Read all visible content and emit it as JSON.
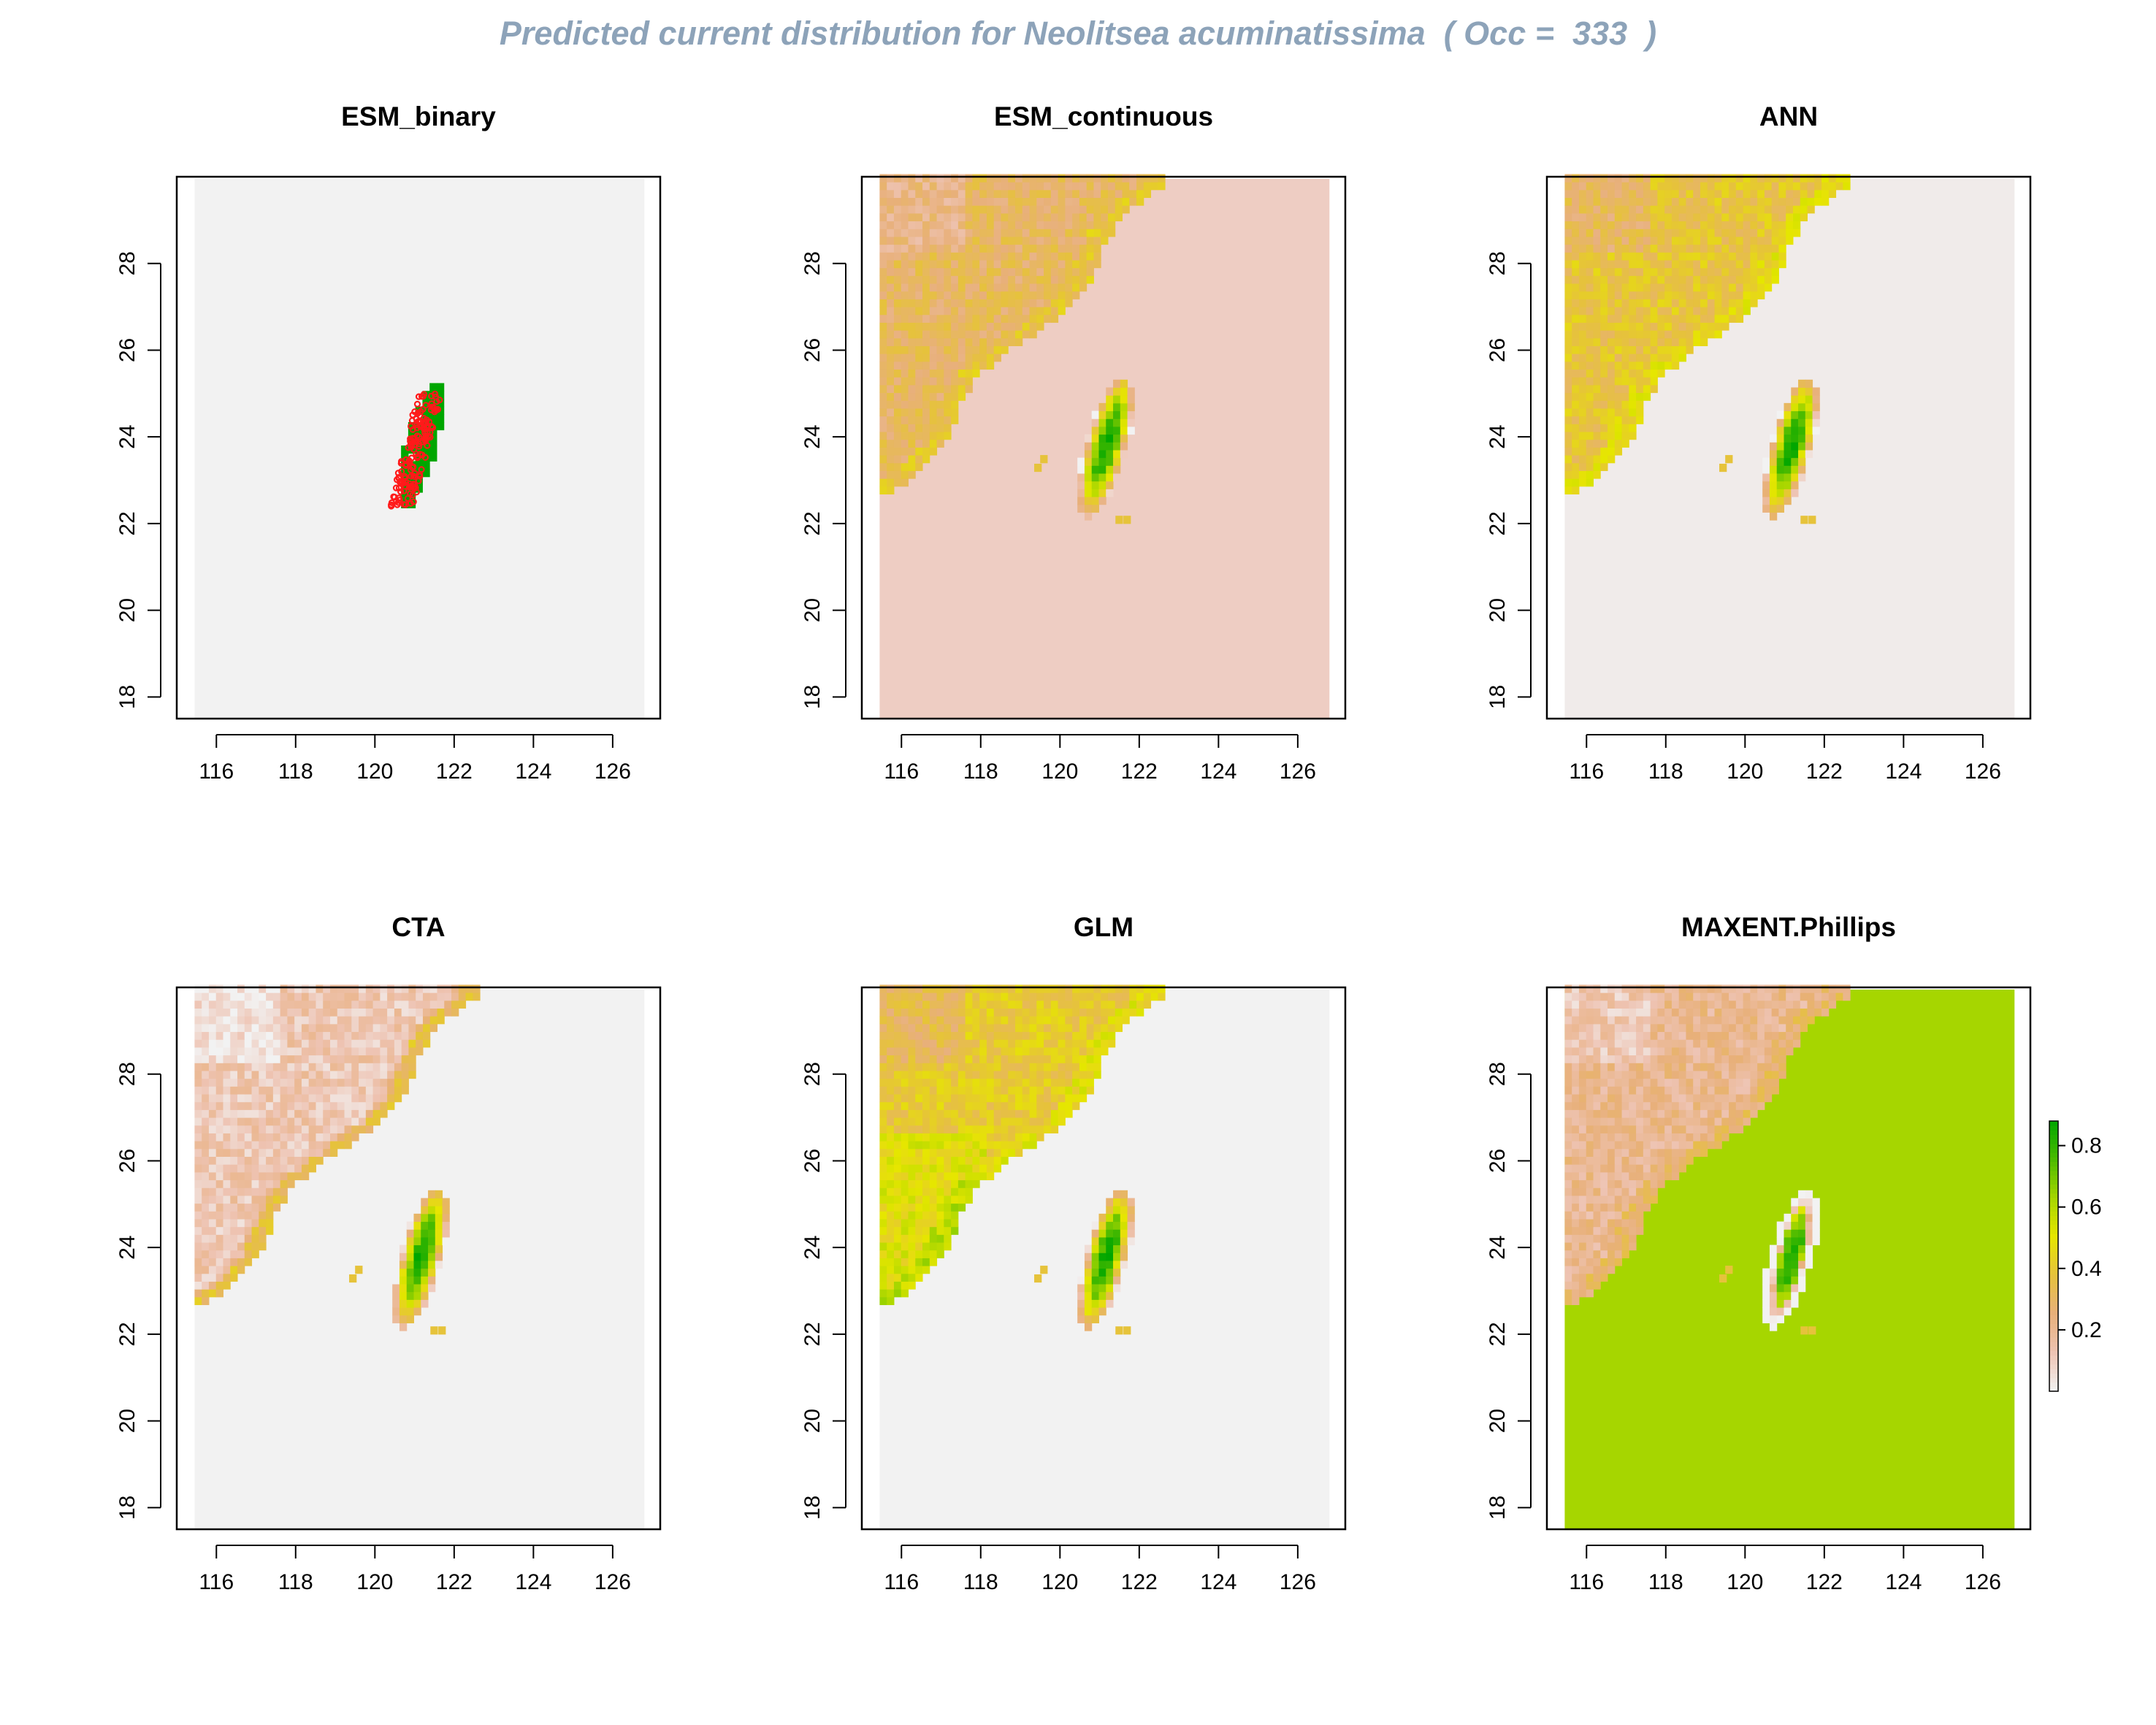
{
  "title": "Predicted current distribution for Neolitsea acuminatissima  ( Occ =  333  )",
  "colors": {
    "title": "#8da3b9",
    "background_cell": "#f2f2f2",
    "occurrence_points": "#ff1a1a",
    "binary_presence": "#00a600",
    "maxent_background": "#a6d600",
    "continuous_background": "#eecdc3",
    "ann_background": "#f0ebea"
  },
  "axes": {
    "x_ticks": [
      "116",
      "118",
      "120",
      "122",
      "124",
      "126"
    ],
    "y_ticks": [
      "18",
      "20",
      "22",
      "24",
      "26",
      "28"
    ],
    "x_range": [
      115,
      127.2
    ],
    "y_range": [
      17.5,
      30
    ]
  },
  "legend": {
    "placement": "right of bottom-right panel",
    "ticks": [
      "0.2",
      "0.4",
      "0.6",
      "0.8"
    ],
    "range": [
      0,
      0.88
    ],
    "palette": [
      "#f2f2f2",
      "#eec3b2",
      "#e8b07a",
      "#e6c23c",
      "#e6e600",
      "#a6d600",
      "#4bbb00",
      "#00a600"
    ]
  },
  "panels": [
    {
      "id": "esm-binary",
      "title": "ESM_binary",
      "type": "binary",
      "background": "#f2f2f2"
    },
    {
      "id": "esm-continuous",
      "title": "ESM_continuous",
      "type": "continuous",
      "background": "#eecdc3",
      "mainland_level": 0.3
    },
    {
      "id": "ann",
      "title": "ANN",
      "type": "continuous",
      "background": "#f0ebea",
      "mainland_level": 0.38
    },
    {
      "id": "cta",
      "title": "CTA",
      "type": "continuous",
      "background": "#f2f2f2",
      "mainland_level": 0.12
    },
    {
      "id": "glm",
      "title": "GLM",
      "type": "continuous",
      "background": "#f2f2f2",
      "mainland_level": 0.4
    },
    {
      "id": "maxent-phillips",
      "title": "MAXENT.Phillips",
      "type": "continuous",
      "background": "#a6d600",
      "mainland_level": 0.2
    }
  ]
}
